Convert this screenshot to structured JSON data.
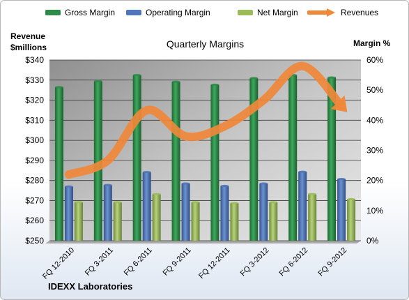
{
  "chart_data": {
    "type": "bar",
    "title": "Quarterly Margins",
    "company": "IDEXX Laboratories",
    "left_axis_label_line1": "Revenue",
    "left_axis_label_line2": "$millions",
    "right_axis_label": "Margin %",
    "categories": [
      "FQ 12-2010",
      "FQ 3-2011",
      "FQ 6-2011",
      "FQ 9-2011",
      "FQ 12-2011",
      "FQ 3-2012",
      "FQ 6-2012",
      "FQ 9-2012"
    ],
    "left_axis": {
      "min": 250,
      "max": 340,
      "step": 10,
      "ticks": [
        "$250",
        "$260",
        "$270",
        "$280",
        "$290",
        "$300",
        "$310",
        "$320",
        "$330",
        "$340"
      ]
    },
    "right_axis": {
      "min": 0,
      "max": 60,
      "step": 10,
      "ticks": [
        "0%",
        "10%",
        "20%",
        "30%",
        "40%",
        "50%",
        "60%"
      ]
    },
    "series": [
      {
        "name": "Gross Margin",
        "kind": "bar",
        "axis": "right",
        "color": "#2e8b4a",
        "values": [
          51.0,
          53.0,
          55.0,
          52.8,
          51.8,
          54.0,
          55.0,
          54.2
        ]
      },
      {
        "name": "Operating Margin",
        "kind": "bar",
        "axis": "right",
        "color": "#4f76b8",
        "values": [
          18.0,
          18.5,
          22.8,
          19.0,
          18.2,
          19.0,
          22.9,
          20.5
        ]
      },
      {
        "name": "Net Margin",
        "kind": "bar",
        "axis": "right",
        "color": "#9bbb59",
        "values": [
          12.8,
          12.8,
          15.5,
          12.8,
          12.5,
          12.8,
          15.5,
          13.8
        ]
      },
      {
        "name": "Revenues",
        "kind": "line",
        "axis": "left",
        "color": "#f0883a",
        "values": [
          283,
          290,
          315,
          302,
          307,
          320,
          337,
          317
        ]
      }
    ],
    "grid": true,
    "legend": "top"
  }
}
